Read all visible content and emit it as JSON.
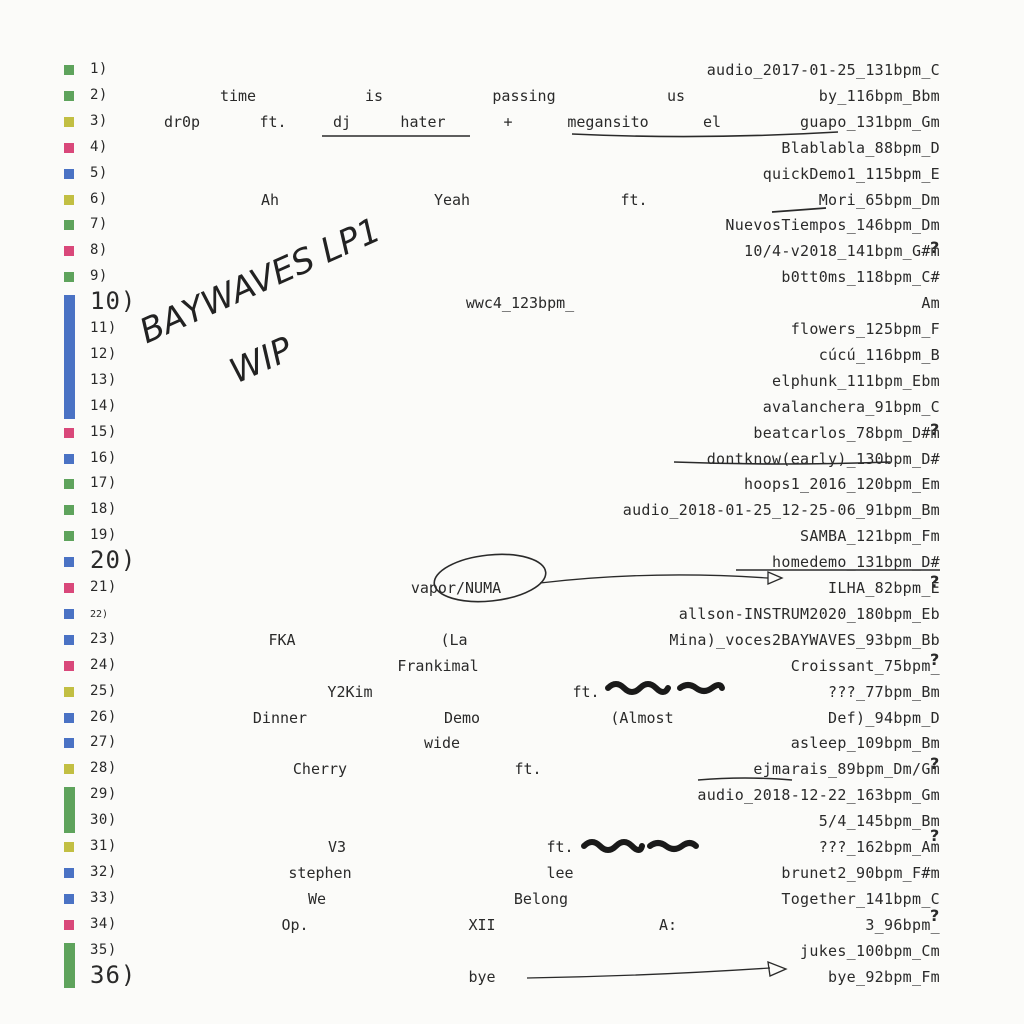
{
  "colors": {
    "green": "#5ea35c",
    "red": "#d9487a",
    "blue": "#4a72c4",
    "yellow": "#c2bf43",
    "ink": "#2a2a2a"
  },
  "title": {
    "line1": "BAYWAVES LP1",
    "line2": "WIP"
  },
  "tracks": [
    {
      "num": "1)",
      "color": "green",
      "words": [],
      "file": "audio_2017-01-25_131bpm_C"
    },
    {
      "num": "2)",
      "color": "green",
      "words": [
        "time",
        "is",
        "passing",
        "us"
      ],
      "file": "by_116bpm_Bbm"
    },
    {
      "num": "3)",
      "color": "yellow",
      "words": [
        "dr0p",
        "ft.",
        "dj",
        "hater",
        "+",
        "megansito",
        "el"
      ],
      "file": "guapo_131bpm_Gm"
    },
    {
      "num": "4)",
      "color": "red",
      "words": [],
      "file": "Blablabla_88bpm_D"
    },
    {
      "num": "5)",
      "color": "blue",
      "words": [],
      "file": "quickDemo1_115bpm_E"
    },
    {
      "num": "6)",
      "color": "yellow",
      "words": [
        "Ah",
        "Yeah",
        "ft."
      ],
      "file": "Mori_65bpm_Dm"
    },
    {
      "num": "7)",
      "color": "green",
      "words": [],
      "file": "NuevosTiempos_146bpm_Dm"
    },
    {
      "num": "8)",
      "color": "red",
      "words": [],
      "file": "10/4-v2018_141bpm_G#m"
    },
    {
      "num": "9)",
      "color": "green",
      "words": [],
      "file": "b0tt0ms_118bpm_C#"
    },
    {
      "num": "10)",
      "color": "blue",
      "words": [
        "wwc4_123bpm_"
      ],
      "file": "Am"
    },
    {
      "num": "11)",
      "color": "blue",
      "words": [],
      "file": "flowers_125bpm_F"
    },
    {
      "num": "12)",
      "color": "blue",
      "words": [],
      "file": "cúcú_116bpm_B"
    },
    {
      "num": "13)",
      "color": "blue",
      "words": [],
      "file": "elphunk_111bpm_Ebm"
    },
    {
      "num": "14)",
      "color": "blue",
      "words": [],
      "file": "avalanchera_91bpm_C"
    },
    {
      "num": "15)",
      "color": "red",
      "words": [],
      "file": "beatcarlos_78bpm_D#m"
    },
    {
      "num": "16)",
      "color": "blue",
      "words": [],
      "file": "dontknow(early)_130bpm_D#"
    },
    {
      "num": "17)",
      "color": "green",
      "words": [],
      "file": "hoops1_2016_120bpm_Em"
    },
    {
      "num": "18)",
      "color": "green",
      "words": [],
      "file": "audio_2018-01-25_12-25-06_91bpm_Bm"
    },
    {
      "num": "19)",
      "color": "green",
      "words": [],
      "file": "SAMBA_121bpm_Fm"
    },
    {
      "num": "20)",
      "color": "blue",
      "words": [],
      "file": "homedemo_131bpm_D#"
    },
    {
      "num": "21)",
      "color": "red",
      "words": [
        "vapor/NUMA"
      ],
      "file": "ILHA_82bpm_E"
    },
    {
      "num": "22)",
      "color": "blue",
      "words": [],
      "file": "allson-INSTRUM2020_180bpm_Eb"
    },
    {
      "num": "23)",
      "color": "blue",
      "words": [
        "FKA",
        "(La"
      ],
      "file": "Mina)_voces2BAYWAVES_93bpm_Bb"
    },
    {
      "num": "24)",
      "color": "red",
      "words": [
        "Frankimal"
      ],
      "file": "Croissant_75bpm_"
    },
    {
      "num": "25)",
      "color": "yellow",
      "words": [
        "Y2Kim",
        "ft."
      ],
      "file": "???_77bpm_Bm"
    },
    {
      "num": "26)",
      "color": "blue",
      "words": [
        "Dinner",
        "Demo",
        "(Almost"
      ],
      "file": "Def)_94bpm_D"
    },
    {
      "num": "27)",
      "color": "blue",
      "words": [
        "wide"
      ],
      "file": "asleep_109bpm_Bm"
    },
    {
      "num": "28)",
      "color": "yellow",
      "words": [
        "Cherry",
        "ft."
      ],
      "file": "ejmarais_89bpm_Dm/Gm"
    },
    {
      "num": "29)",
      "color": "green",
      "words": [],
      "file": "audio_2018-12-22_163bpm_Gm"
    },
    {
      "num": "30)",
      "color": "green",
      "words": [],
      "file": "5/4_145bpm_Bm"
    },
    {
      "num": "31)",
      "color": "yellow",
      "words": [
        "V3",
        "ft."
      ],
      "file": "???_162bpm_Am"
    },
    {
      "num": "32)",
      "color": "blue",
      "words": [
        "stephen",
        "lee"
      ],
      "file": "brunet2_90bpm_F#m"
    },
    {
      "num": "33)",
      "color": "blue",
      "words": [
        "We",
        "Belong"
      ],
      "file": "Together_141bpm_C"
    },
    {
      "num": "34)",
      "color": "red",
      "words": [
        "Op.",
        "XII",
        "A:"
      ],
      "file": "3_96bpm_"
    },
    {
      "num": "35)",
      "color": "green",
      "words": [],
      "file": "jukes_100bpm_Cm"
    },
    {
      "num": "36)",
      "color": "green",
      "words": [
        "bye"
      ],
      "file": "bye_92bpm_Fm"
    }
  ]
}
